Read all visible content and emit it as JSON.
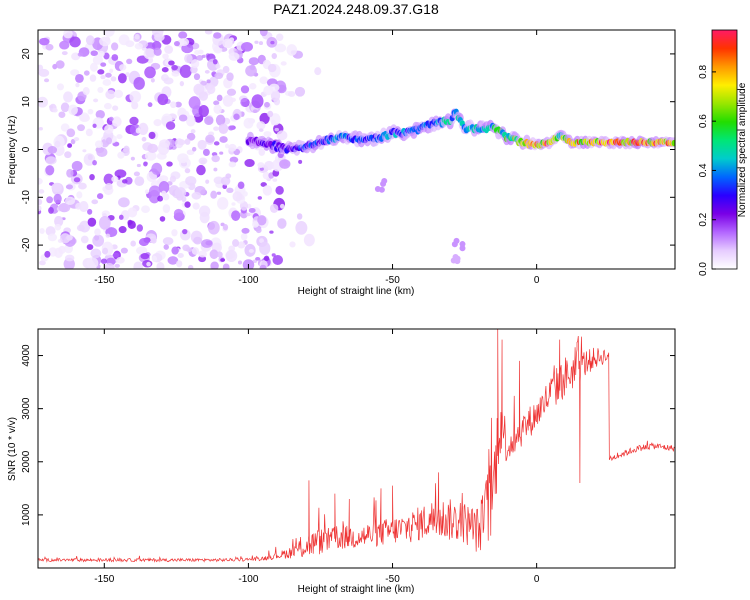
{
  "title": "PAZ1.2024.248.09.37.G18",
  "chart_data": [
    {
      "type": "heatmap",
      "xlabel": "Height of straight line (km)",
      "ylabel": "Frequency (Hz)",
      "xlim": [
        -173,
        48
      ],
      "ylim": [
        -25,
        25
      ],
      "xticks": [
        -150,
        -100,
        -50,
        0
      ],
      "xtick_labels": [
        "-150",
        "-100",
        "-50",
        "0"
      ],
      "yticks": [
        -20,
        -10,
        0,
        10,
        20
      ],
      "ytick_labels": [
        "-20",
        "-10",
        "0",
        "10",
        "20"
      ],
      "colorbar": {
        "label": "Normalized spectral amplitude",
        "range": [
          0.0,
          0.97
        ],
        "ticks": [
          0.0,
          0.2,
          0.4,
          0.6,
          0.8
        ],
        "tick_labels": [
          "0.0",
          "0.2",
          "0.4",
          "0.6",
          "0.8"
        ],
        "colormap": [
          "#ffffff",
          "#e6ccff",
          "#b366ff",
          "#7a00e6",
          "#2a00ff",
          "#0066ff",
          "#00cccc",
          "#00e676",
          "#22dd00",
          "#99e600",
          "#ffee00",
          "#ff9900",
          "#ff3300",
          "#ff1a66"
        ]
      },
      "ridge": {
        "height_km": [
          -100,
          -95,
          -90,
          -85,
          -80,
          -75,
          -70,
          -65,
          -60,
          -55,
          -50,
          -45,
          -40,
          -35,
          -30,
          -28,
          -25,
          -20,
          -15,
          -10,
          -5,
          0,
          5,
          8,
          12,
          20,
          30,
          40,
          48
        ],
        "frequency_hz": [
          2,
          1.5,
          0.5,
          0,
          0.5,
          1.5,
          2.5,
          2.5,
          2,
          2.5,
          3.5,
          3.5,
          4.5,
          5.5,
          6,
          8,
          4.5,
          4.5,
          4.5,
          2.5,
          1.5,
          1,
          1.5,
          3,
          1.5,
          1.5,
          1.5,
          1.5,
          1.5
        ],
        "amplitude": [
          0.25,
          0.3,
          0.3,
          0.35,
          0.35,
          0.35,
          0.4,
          0.4,
          0.35,
          0.35,
          0.45,
          0.4,
          0.45,
          0.45,
          0.5,
          0.45,
          0.5,
          0.5,
          0.55,
          0.6,
          0.8,
          0.85,
          0.9,
          0.6,
          0.85,
          0.9,
          0.95,
          0.9,
          0.85
        ]
      },
      "noise_region_km": [
        -173,
        -88
      ],
      "detached_blobs": [
        {
          "height_km": -54,
          "frequency_hz": -7.5,
          "amplitude": 0.12
        },
        {
          "height_km": -27,
          "frequency_hz": -20,
          "amplitude": 0.12
        },
        {
          "height_km": -28,
          "frequency_hz": -23,
          "amplitude": 0.1
        }
      ]
    },
    {
      "type": "line",
      "xlabel": "Height of straight line (km)",
      "ylabel": "SNR (10 * v/v)",
      "xlim": [
        -173,
        48
      ],
      "ylim": [
        0,
        4500
      ],
      "xticks": [
        -150,
        -100,
        -50,
        0
      ],
      "xtick_labels": [
        "-150",
        "-100",
        "-50",
        "0"
      ],
      "yticks": [
        1000,
        2000,
        3000,
        4000
      ],
      "ytick_labels": [
        "1000",
        "2000",
        "3000",
        "4000"
      ],
      "series": [
        {
          "color": "#ee3333",
          "x": [
            -173,
            -150,
            -130,
            -110,
            -100,
            -95,
            -90,
            -85,
            -80,
            -75,
            -70,
            -65,
            -60,
            -55,
            -50,
            -45,
            -40,
            -35,
            -30,
            -25,
            -20,
            -15,
            -13,
            -10,
            -5,
            0,
            5,
            10,
            15,
            20,
            24,
            25,
            30,
            35,
            40,
            48
          ],
          "y": [
            150,
            150,
            150,
            150,
            160,
            180,
            230,
            300,
            420,
            500,
            550,
            580,
            600,
            650,
            700,
            750,
            850,
            950,
            900,
            850,
            700,
            1400,
            2800,
            2300,
            2600,
            2900,
            3300,
            3600,
            3800,
            3950,
            4000,
            2050,
            2150,
            2250,
            2300,
            2250
          ],
          "noise": [
            30,
            30,
            30,
            30,
            30,
            40,
            60,
            120,
            250,
            250,
            220,
            230,
            240,
            250,
            260,
            300,
            330,
            380,
            400,
            400,
            450,
            900,
            700,
            350,
            300,
            300,
            350,
            400,
            300,
            200,
            150,
            60,
            60,
            60,
            60,
            60
          ],
          "spikes": [
            {
              "x": -79,
              "y": 1650
            },
            {
              "x": -70,
              "y": 1400
            },
            {
              "x": -65,
              "y": 1300
            },
            {
              "x": -54,
              "y": 1500
            },
            {
              "x": -50,
              "y": 1550
            },
            {
              "x": -34,
              "y": 1800
            },
            {
              "x": -13.5,
              "y": 4500
            },
            {
              "x": -12,
              "y": 4300
            },
            {
              "x": -6,
              "y": 3900
            },
            {
              "x": 8,
              "y": 4300
            },
            {
              "x": 14,
              "y": 4250
            },
            {
              "x": 15,
              "y": 1600
            }
          ]
        }
      ]
    }
  ]
}
